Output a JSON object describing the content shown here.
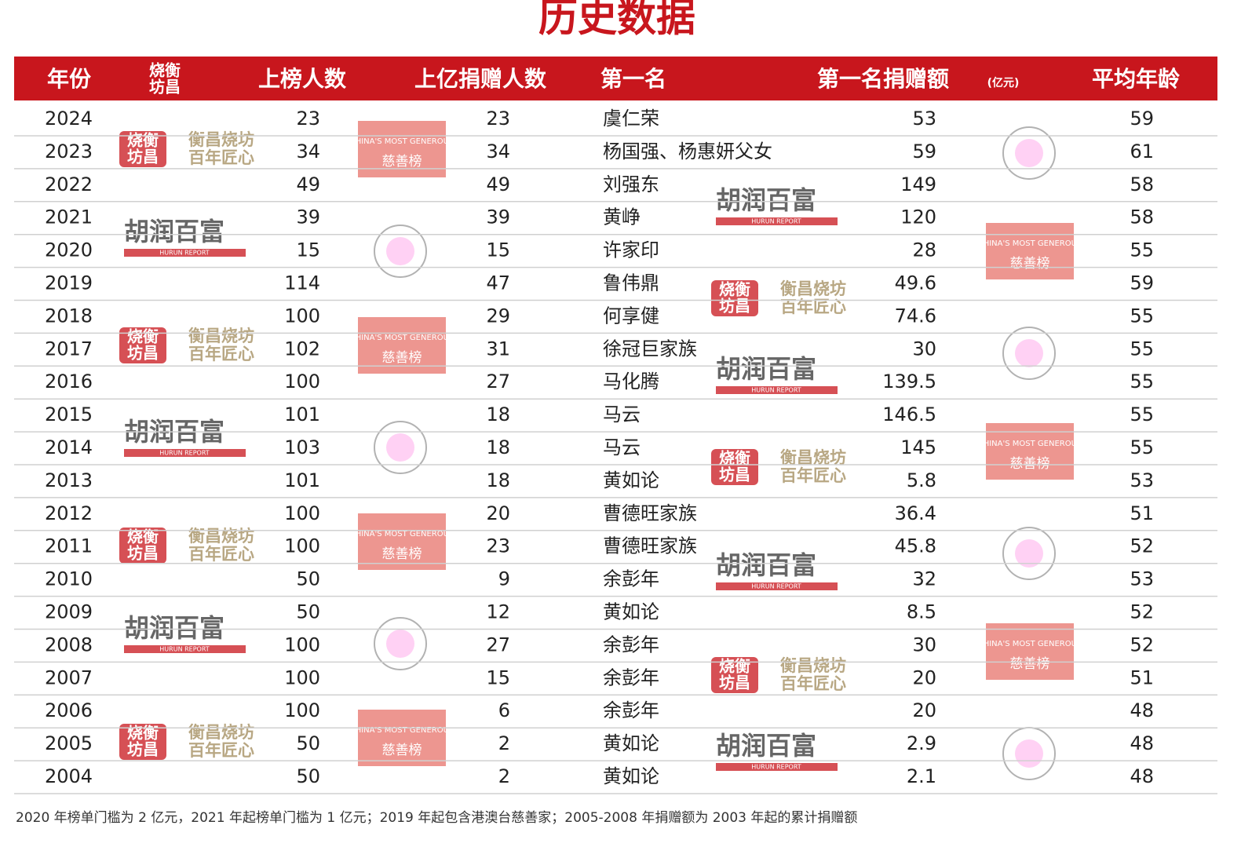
{
  "title": "历史数据",
  "table": {
    "header": [
      "年份",
      "上榜人数",
      "上亿捐赠人数",
      "第一名",
      "第一名捐赠额",
      "平均年龄"
    ],
    "unit": "(亿元)",
    "rows": [
      [
        2024,
        23,
        23,
        "虞仁荣",
        53,
        59
      ],
      [
        2023,
        34,
        34,
        "杨国强、杨惠妍父女",
        59,
        61
      ],
      [
        2022,
        49,
        49,
        "刘强东",
        149,
        58
      ],
      [
        2021,
        39,
        39,
        "黄峥",
        120,
        58
      ],
      [
        2020,
        15,
        15,
        "许家印",
        28,
        55
      ],
      [
        2019,
        114,
        47,
        "鲁伟鼎",
        49.6,
        59
      ],
      [
        2018,
        100,
        29,
        "何享健",
        74.6,
        55
      ],
      [
        2017,
        102,
        31,
        "徐冠巨家族",
        30,
        55
      ],
      [
        2016,
        100,
        27,
        "马化腾",
        139.5,
        55
      ],
      [
        2015,
        101,
        18,
        "马云",
        146.5,
        55
      ],
      [
        2014,
        103,
        18,
        "马云",
        145,
        55
      ],
      [
        2013,
        101,
        18,
        "黄如论",
        5.8,
        53
      ],
      [
        2012,
        100,
        20,
        "曹德旺家族",
        36.4,
        51
      ],
      [
        2011,
        100,
        23,
        "曹德旺家族",
        45.8,
        52
      ],
      [
        2010,
        50,
        9,
        "余彭年",
        32,
        53
      ],
      [
        2009,
        50,
        12,
        "黄如论",
        8.5,
        52
      ],
      [
        2008,
        100,
        27,
        "余彭年",
        30,
        52
      ],
      [
        2007,
        100,
        15,
        "余彭年",
        20,
        51
      ],
      [
        2006,
        100,
        6,
        "余彭年",
        20,
        48
      ],
      [
        2005,
        50,
        2,
        "黄如论",
        2.9,
        48
      ],
      [
        2004,
        50,
        2,
        "黄如论",
        2.1,
        48
      ]
    ]
  },
  "footnote": "2020 年榜单门槛为 2 亿元，2021 年起榜单门槛为 1 亿元；2019 年起包含港澳台慈善家；2005-2008 年捐赠额为 2003 年起的累计捐赠额",
  "watermarks": {
    "hurun": "胡润百富",
    "hurun_en": "HURUN REPORT",
    "heng_1": "衡昌烧坊",
    "heng_2": "百年匠心",
    "stamp_1": "烧衡",
    "stamp_2": "坊昌",
    "generous_en": "CHINA'S MOST GENEROUS",
    "generous_cn": "慈善榜"
  }
}
